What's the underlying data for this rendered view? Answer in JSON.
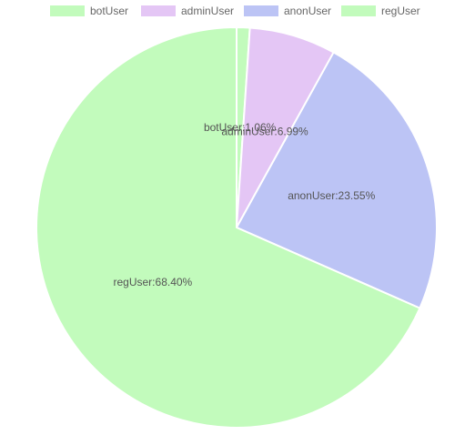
{
  "chart_data": {
    "type": "pie",
    "title": "",
    "legend_position": "top",
    "slices": [
      {
        "name": "botUser",
        "value": 1.06,
        "label": "botUser:1.06%",
        "fill": "#c2fbbc"
      },
      {
        "name": "adminUser",
        "value": 6.99,
        "label": "adminUser:6.99%",
        "fill": "#e4c6f5"
      },
      {
        "name": "anonUser",
        "value": 23.55,
        "label": "anonUser:23.55%",
        "fill": "#bcc4f5"
      },
      {
        "name": "regUser",
        "value": 68.4,
        "label": "regUser:68.40%",
        "fill": "#c2fbbc"
      }
    ]
  }
}
